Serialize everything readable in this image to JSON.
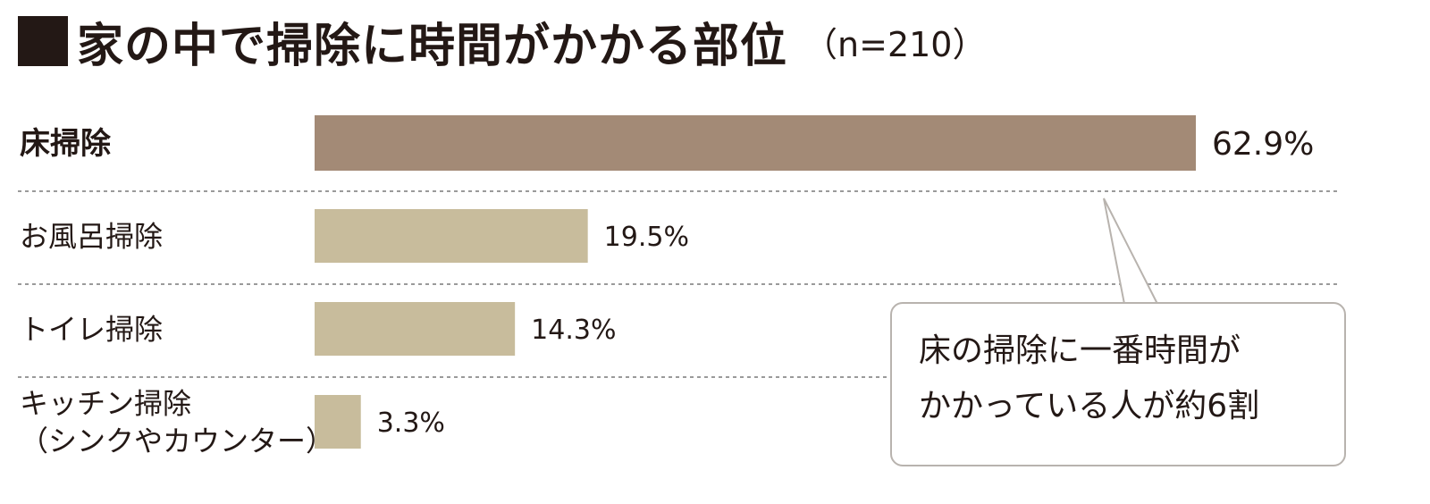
{
  "title": {
    "text": "家の中で掃除に時間がかかる部位",
    "n": "（n=210）"
  },
  "callout": {
    "lines": [
      "床の掃除に一番時間が",
      "かかっている人が約6割"
    ]
  },
  "colors": {
    "highlight": "#a38a76",
    "normal": "#c8bc9c",
    "divider": "#9a9a9a",
    "text": "#231815"
  },
  "chart_data": {
    "type": "bar",
    "orientation": "horizontal",
    "title": "家の中で掃除に時間がかかる部位",
    "categories": [
      [
        "床掃除"
      ],
      [
        "お風呂掃除"
      ],
      [
        "トイレ掃除"
      ],
      [
        "キッチン掃除",
        "（シンクやカウンター）"
      ]
    ],
    "values": [
      62.9,
      19.5,
      14.3,
      3.3
    ],
    "value_labels": [
      "62.9%",
      "19.5%",
      "14.3%",
      "3.3%"
    ],
    "xlim": [
      0,
      62.9
    ],
    "highlight_index": 0,
    "grid": false
  }
}
